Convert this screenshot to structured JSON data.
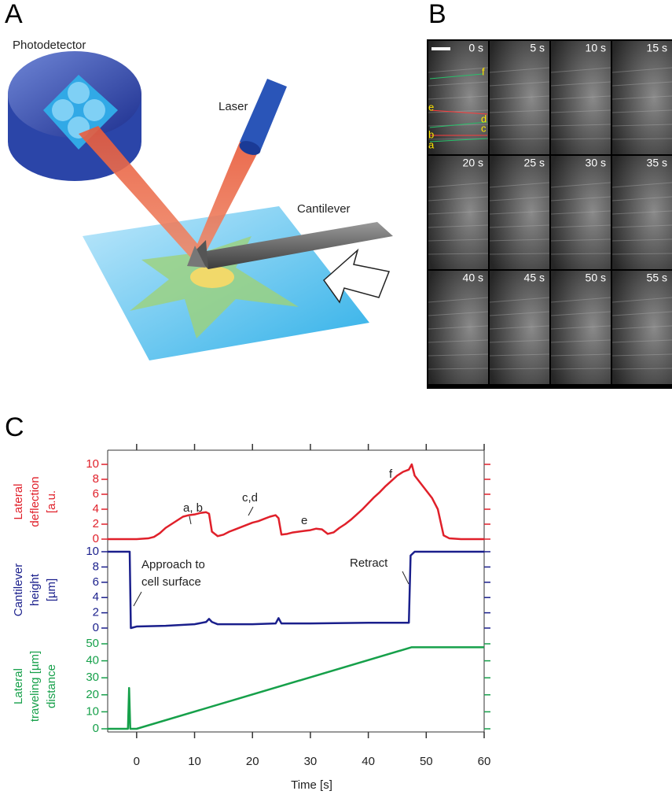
{
  "panel_labels": [
    "A",
    "B",
    "C"
  ],
  "diagram": {
    "labels": [
      "Photodetector",
      "Laser",
      "Cantilever"
    ]
  },
  "micrographs": {
    "times": [
      "0 s",
      "5 s",
      "10 s",
      "15 s",
      "20 s",
      "25 s",
      "30 s",
      "35 s",
      "40 s",
      "45 s",
      "50 s",
      "55 s"
    ],
    "tracks": [
      "f",
      "e",
      "d",
      "c",
      "b",
      "a"
    ]
  },
  "chart_data": [
    {
      "type": "line",
      "color": "#e0202a",
      "ylabel": [
        "Lateral",
        "deflection",
        "[a.u."
      ],
      "ylim": [
        0,
        10
      ],
      "yticks": [
        0,
        2,
        4,
        6,
        8,
        10
      ],
      "annotations": [
        "a, b",
        "c,d",
        "e",
        "f"
      ],
      "x": [
        -5,
        -2,
        0,
        2,
        3,
        4,
        5,
        6,
        7,
        8,
        9,
        10,
        11,
        12,
        12.5,
        13,
        14,
        15,
        16,
        17,
        18,
        19,
        20,
        21,
        22,
        23,
        24,
        24.5,
        25,
        26,
        27,
        28,
        29,
        30,
        31,
        32,
        33,
        34,
        35,
        36,
        37,
        38,
        39,
        40,
        41,
        42,
        43,
        44,
        45,
        46,
        47,
        47.5,
        48,
        49,
        50,
        51,
        52,
        53,
        54,
        56,
        60
      ],
      "values": [
        0,
        0,
        0,
        0.1,
        0.3,
        0.8,
        1.5,
        2,
        2.5,
        3,
        3.2,
        3.3,
        3.5,
        3.6,
        3.4,
        1,
        0.4,
        0.6,
        1,
        1.3,
        1.6,
        1.9,
        2.2,
        2.4,
        2.7,
        3,
        3.2,
        2.8,
        0.6,
        0.7,
        0.9,
        1,
        1.1,
        1.2,
        1.4,
        1.3,
        0.7,
        0.9,
        1.5,
        2,
        2.6,
        3.3,
        4,
        4.8,
        5.6,
        6.3,
        7.1,
        7.8,
        8.5,
        9,
        9.3,
        10,
        8.5,
        7.5,
        6.5,
        5.5,
        4,
        0.5,
        0.1,
        0,
        0
      ]
    },
    {
      "type": "line",
      "color": "#1a1f8c",
      "ylabel": [
        "Cantilever",
        "height",
        "[µm]"
      ],
      "ylim": [
        0,
        10
      ],
      "yticks": [
        0,
        2,
        4,
        6,
        8,
        10
      ],
      "annotations": [
        "Approach to",
        "cell surface",
        "Retract"
      ],
      "x": [
        -5,
        -1.2,
        -1,
        0,
        5,
        10,
        12,
        12.5,
        13,
        14,
        20,
        24,
        24.5,
        25,
        30,
        40,
        47,
        47.3,
        48,
        60
      ],
      "values": [
        10,
        10,
        0,
        0.2,
        0.3,
        0.5,
        0.8,
        1.2,
        0.8,
        0.5,
        0.5,
        0.6,
        1.3,
        0.6,
        0.6,
        0.7,
        0.7,
        9.5,
        10,
        10
      ]
    },
    {
      "type": "line",
      "color": "#16a04a",
      "ylabel": [
        "Lateral",
        "traveling [µm]",
        "distance"
      ],
      "ylim": [
        0,
        50
      ],
      "yticks": [
        0,
        10,
        20,
        30,
        40,
        50
      ],
      "xlim": [
        -5,
        60
      ],
      "xticks": [
        0,
        10,
        20,
        30,
        40,
        50,
        60
      ],
      "xlabel": "Time [s]",
      "x": [
        -5,
        -1.5,
        -1.3,
        -1.1,
        0,
        47.5,
        60
      ],
      "values": [
        0,
        0,
        24,
        0,
        0,
        48,
        48
      ]
    }
  ]
}
